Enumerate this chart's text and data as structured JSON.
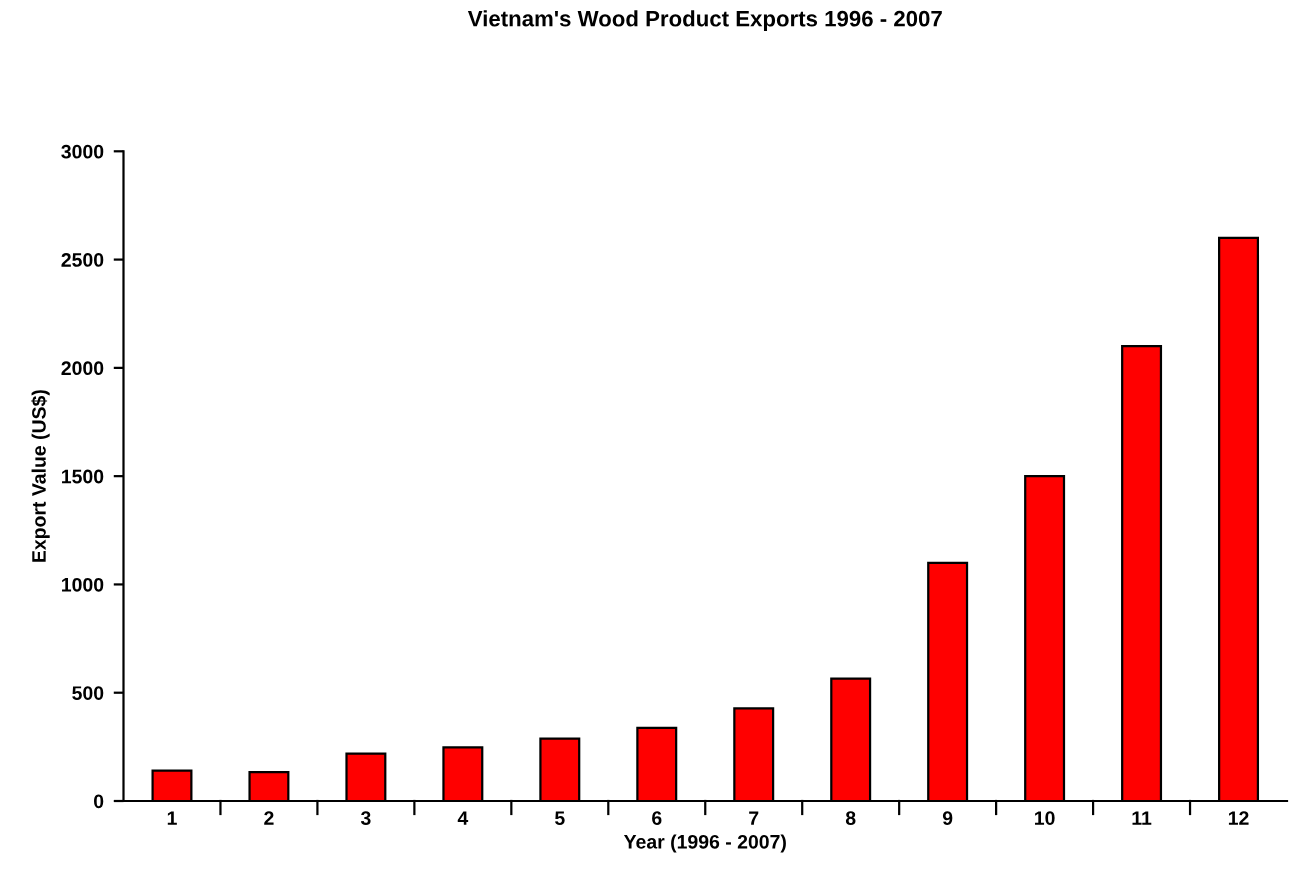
{
  "chart_data": {
    "type": "bar",
    "title": "Vietnam's Wood Product Exports 1996 - 2007",
    "xlabel": "Year (1996 - 2007)",
    "ylabel": "Export Value (US$)",
    "categories": [
      "1",
      "2",
      "3",
      "4",
      "5",
      "6",
      "7",
      "8",
      "9",
      "10",
      "11",
      "12"
    ],
    "values": [
      140,
      133,
      219,
      248,
      288,
      338,
      428,
      565,
      1100,
      1500,
      2100,
      2600
    ],
    "color": "#ff0000",
    "ylim": [
      0,
      3000
    ],
    "yticks": [
      0,
      500,
      1000,
      1500,
      2000,
      2500,
      3000
    ],
    "grid": false,
    "legend": false
  }
}
